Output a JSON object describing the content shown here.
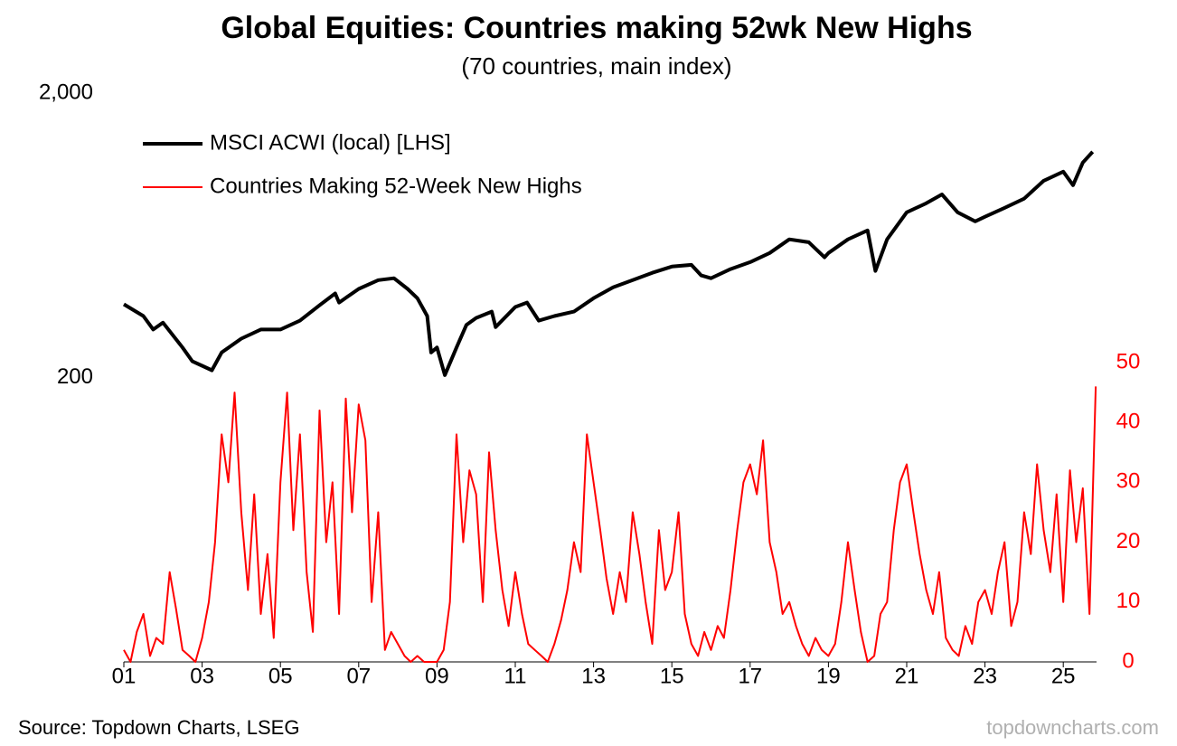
{
  "chart_data": {
    "type": "line",
    "title": "Global Equities: Countries making 52wk New Highs",
    "subtitle": "(70 countries, main index)",
    "source": "Source: Topdown Charts, LSEG",
    "watermark": "topdowncharts.com",
    "log_scale_y": true,
    "legend": "top-left",
    "xlim": [
      2001,
      2025.85
    ],
    "xticks": [
      {
        "value": 2001,
        "label": "01"
      },
      {
        "value": 2003,
        "label": "03"
      },
      {
        "value": 2005,
        "label": "05"
      },
      {
        "value": 2007,
        "label": "07"
      },
      {
        "value": 2009,
        "label": "09"
      },
      {
        "value": 2011,
        "label": "11"
      },
      {
        "value": 2013,
        "label": "13"
      },
      {
        "value": 2015,
        "label": "15"
      },
      {
        "value": 2017,
        "label": "17"
      },
      {
        "value": 2019,
        "label": "19"
      },
      {
        "value": 2021,
        "label": "21"
      },
      {
        "value": 2023,
        "label": "23"
      },
      {
        "value": 2025,
        "label": "25"
      }
    ],
    "ylim": [
      20,
      2000
    ],
    "yticks": [
      200,
      {
        "value": 2000,
        "label": "2,000"
      }
    ],
    "y2lim": [
      0,
      95
    ],
    "y2ticks": [
      0,
      10,
      20,
      30,
      40,
      50
    ],
    "series": [
      {
        "name": "MSCI ACWI (local) [LHS]",
        "color": "#000000",
        "axis": "y",
        "x": [
          2001.0,
          2001.5,
          2001.75,
          2002.0,
          2002.5,
          2002.75,
          2003.0,
          2003.25,
          2003.5,
          2004.0,
          2004.5,
          2005.0,
          2005.5,
          2006.0,
          2006.4,
          2006.5,
          2007.0,
          2007.5,
          2007.9,
          2008.25,
          2008.5,
          2008.75,
          2008.85,
          2009.0,
          2009.2,
          2009.5,
          2009.75,
          2010.0,
          2010.4,
          2010.5,
          2011.0,
          2011.3,
          2011.6,
          2012.0,
          2012.5,
          2013.0,
          2013.5,
          2014.0,
          2014.5,
          2015.0,
          2015.5,
          2015.75,
          2016.0,
          2016.5,
          2017.0,
          2017.5,
          2018.0,
          2018.5,
          2018.9,
          2019.0,
          2019.5,
          2020.0,
          2020.2,
          2020.5,
          2021.0,
          2021.5,
          2021.9,
          2022.3,
          2022.75,
          2023.0,
          2023.5,
          2024.0,
          2024.5,
          2025.0,
          2025.25,
          2025.5,
          2025.75
        ],
        "values": [
          362,
          329,
          295,
          312,
          255,
          228,
          220,
          212,
          245,
          274,
          295,
          295,
          317,
          359,
          395,
          367,
          410,
          440,
          447,
          410,
          380,
          329,
          245,
          255,
          204,
          255,
          306,
          324,
          341,
          301,
          354,
          367,
          317,
          329,
          341,
          380,
          415,
          440,
          467,
          491,
          498,
          457,
          447,
          481,
          509,
          548,
          612,
          598,
          529,
          548,
          612,
          658,
          474,
          612,
          762,
          820,
          881,
          762,
          708,
          735,
          790,
          851,
          984,
          1059,
          949,
          1140,
          1244
        ]
      },
      {
        "name": "Countries Making 52-Week New Highs",
        "color": "#ff0000",
        "axis": "y2",
        "x": [
          2001.0,
          2001.17,
          2001.33,
          2001.5,
          2001.67,
          2001.83,
          2002.0,
          2002.17,
          2002.33,
          2002.5,
          2002.67,
          2002.83,
          2003.0,
          2003.17,
          2003.33,
          2003.5,
          2003.67,
          2003.83,
          2004.0,
          2004.17,
          2004.33,
          2004.5,
          2004.67,
          2004.83,
          2005.0,
          2005.17,
          2005.33,
          2005.5,
          2005.67,
          2005.83,
          2006.0,
          2006.17,
          2006.33,
          2006.5,
          2006.67,
          2006.83,
          2007.0,
          2007.17,
          2007.33,
          2007.5,
          2007.67,
          2007.83,
          2008.0,
          2008.17,
          2008.33,
          2008.5,
          2008.67,
          2008.83,
          2009.0,
          2009.17,
          2009.33,
          2009.5,
          2009.67,
          2009.83,
          2010.0,
          2010.17,
          2010.33,
          2010.5,
          2010.67,
          2010.83,
          2011.0,
          2011.17,
          2011.33,
          2011.5,
          2011.67,
          2011.83,
          2012.0,
          2012.17,
          2012.33,
          2012.5,
          2012.67,
          2012.83,
          2013.0,
          2013.17,
          2013.33,
          2013.5,
          2013.67,
          2013.83,
          2014.0,
          2014.17,
          2014.33,
          2014.5,
          2014.67,
          2014.83,
          2015.0,
          2015.17,
          2015.33,
          2015.5,
          2015.67,
          2015.83,
          2016.0,
          2016.17,
          2016.33,
          2016.5,
          2016.67,
          2016.83,
          2017.0,
          2017.17,
          2017.33,
          2017.5,
          2017.67,
          2017.83,
          2018.0,
          2018.17,
          2018.33,
          2018.5,
          2018.67,
          2018.83,
          2019.0,
          2019.17,
          2019.33,
          2019.5,
          2019.67,
          2019.83,
          2020.0,
          2020.17,
          2020.33,
          2020.5,
          2020.67,
          2020.83,
          2021.0,
          2021.17,
          2021.33,
          2021.5,
          2021.67,
          2021.83,
          2022.0,
          2022.17,
          2022.33,
          2022.5,
          2022.67,
          2022.83,
          2023.0,
          2023.17,
          2023.33,
          2023.5,
          2023.67,
          2023.83,
          2024.0,
          2024.17,
          2024.33,
          2024.5,
          2024.67,
          2024.83,
          2025.0,
          2025.17,
          2025.33,
          2025.5,
          2025.67,
          2025.83
        ],
        "values": [
          2,
          0,
          5,
          8,
          1,
          4,
          3,
          15,
          9,
          2,
          1,
          0,
          4,
          10,
          20,
          38,
          30,
          45,
          25,
          12,
          28,
          8,
          18,
          4,
          30,
          45,
          22,
          38,
          15,
          5,
          42,
          20,
          30,
          8,
          44,
          25,
          43,
          37,
          10,
          25,
          2,
          5,
          3,
          1,
          0,
          1,
          0,
          0,
          0,
          2,
          10,
          38,
          20,
          32,
          28,
          10,
          35,
          22,
          12,
          6,
          15,
          8,
          3,
          2,
          1,
          0,
          3,
          7,
          12,
          20,
          15,
          38,
          30,
          22,
          14,
          8,
          15,
          10,
          25,
          18,
          10,
          3,
          22,
          12,
          15,
          25,
          8,
          3,
          1,
          5,
          2,
          6,
          4,
          12,
          22,
          30,
          33,
          28,
          37,
          20,
          15,
          8,
          10,
          6,
          3,
          1,
          4,
          2,
          1,
          3,
          10,
          20,
          12,
          5,
          0,
          1,
          8,
          10,
          22,
          30,
          33,
          25,
          18,
          12,
          8,
          15,
          4,
          2,
          1,
          6,
          3,
          10,
          12,
          8,
          15,
          20,
          6,
          10,
          25,
          18,
          33,
          22,
          15,
          28,
          10,
          32,
          20,
          29,
          8,
          46
        ]
      }
    ]
  }
}
